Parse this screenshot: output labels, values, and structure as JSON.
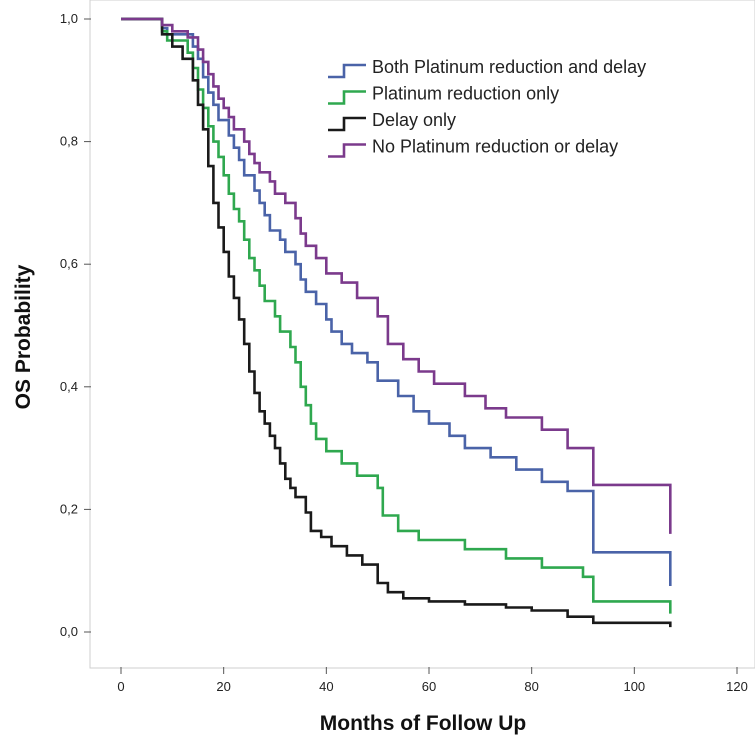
{
  "chart_data": {
    "type": "line",
    "title": "",
    "xlabel": "Months of Follow Up",
    "ylabel": "OS Probability",
    "xlim": [
      0,
      120
    ],
    "ylim": [
      0,
      1
    ],
    "x_ticks": [
      "0",
      "20",
      "40",
      "60",
      "80",
      "100",
      "120"
    ],
    "y_ticks": [
      "0,0",
      "0,2",
      "0,4",
      "0,6",
      "0,8",
      "1,0"
    ],
    "grid": false,
    "legend_position": "top-right",
    "series": [
      {
        "name": "Both Platinum reduction and delay",
        "color": "#4a63a8",
        "points": [
          [
            0,
            1.0
          ],
          [
            8,
            1.0
          ],
          [
            8,
            0.985
          ],
          [
            9,
            0.985
          ],
          [
            9,
            0.975
          ],
          [
            14,
            0.975
          ],
          [
            14,
            0.955
          ],
          [
            15,
            0.955
          ],
          [
            15,
            0.935
          ],
          [
            16,
            0.935
          ],
          [
            16,
            0.905
          ],
          [
            17,
            0.905
          ],
          [
            17,
            0.88
          ],
          [
            18,
            0.88
          ],
          [
            18,
            0.86
          ],
          [
            19,
            0.86
          ],
          [
            19,
            0.835
          ],
          [
            21,
            0.835
          ],
          [
            21,
            0.81
          ],
          [
            22,
            0.81
          ],
          [
            22,
            0.79
          ],
          [
            23,
            0.79
          ],
          [
            23,
            0.77
          ],
          [
            24,
            0.77
          ],
          [
            24,
            0.745
          ],
          [
            26,
            0.745
          ],
          [
            26,
            0.72
          ],
          [
            27,
            0.72
          ],
          [
            27,
            0.7
          ],
          [
            28,
            0.7
          ],
          [
            28,
            0.68
          ],
          [
            29,
            0.68
          ],
          [
            29,
            0.655
          ],
          [
            31,
            0.655
          ],
          [
            31,
            0.64
          ],
          [
            32,
            0.64
          ],
          [
            32,
            0.62
          ],
          [
            34,
            0.62
          ],
          [
            34,
            0.6
          ],
          [
            35,
            0.6
          ],
          [
            35,
            0.575
          ],
          [
            36,
            0.575
          ],
          [
            36,
            0.555
          ],
          [
            38,
            0.555
          ],
          [
            38,
            0.535
          ],
          [
            40,
            0.535
          ],
          [
            40,
            0.51
          ],
          [
            41,
            0.51
          ],
          [
            41,
            0.49
          ],
          [
            43,
            0.49
          ],
          [
            43,
            0.47
          ],
          [
            45,
            0.47
          ],
          [
            45,
            0.455
          ],
          [
            48,
            0.455
          ],
          [
            48,
            0.44
          ],
          [
            50,
            0.44
          ],
          [
            50,
            0.41
          ],
          [
            54,
            0.41
          ],
          [
            54,
            0.385
          ],
          [
            57,
            0.385
          ],
          [
            57,
            0.36
          ],
          [
            60,
            0.36
          ],
          [
            60,
            0.34
          ],
          [
            64,
            0.34
          ],
          [
            64,
            0.32
          ],
          [
            67,
            0.32
          ],
          [
            67,
            0.3
          ],
          [
            72,
            0.3
          ],
          [
            72,
            0.285
          ],
          [
            77,
            0.285
          ],
          [
            77,
            0.265
          ],
          [
            82,
            0.265
          ],
          [
            82,
            0.245
          ],
          [
            87,
            0.245
          ],
          [
            87,
            0.23
          ],
          [
            92,
            0.23
          ],
          [
            92,
            0.13
          ],
          [
            107,
            0.13
          ],
          [
            107,
            0.075
          ]
        ]
      },
      {
        "name": "Platinum reduction only",
        "color": "#2fa84f",
        "points": [
          [
            0,
            1.0
          ],
          [
            8,
            1.0
          ],
          [
            8,
            0.98
          ],
          [
            9,
            0.98
          ],
          [
            9,
            0.965
          ],
          [
            13,
            0.965
          ],
          [
            13,
            0.945
          ],
          [
            14,
            0.945
          ],
          [
            14,
            0.92
          ],
          [
            15,
            0.92
          ],
          [
            15,
            0.885
          ],
          [
            16,
            0.885
          ],
          [
            16,
            0.855
          ],
          [
            17,
            0.855
          ],
          [
            17,
            0.825
          ],
          [
            18,
            0.825
          ],
          [
            18,
            0.8
          ],
          [
            19,
            0.8
          ],
          [
            19,
            0.775
          ],
          [
            20,
            0.775
          ],
          [
            20,
            0.745
          ],
          [
            21,
            0.745
          ],
          [
            21,
            0.715
          ],
          [
            22,
            0.715
          ],
          [
            22,
            0.69
          ],
          [
            23,
            0.69
          ],
          [
            23,
            0.67
          ],
          [
            24,
            0.67
          ],
          [
            24,
            0.64
          ],
          [
            25,
            0.64
          ],
          [
            25,
            0.61
          ],
          [
            26,
            0.61
          ],
          [
            26,
            0.59
          ],
          [
            27,
            0.59
          ],
          [
            27,
            0.565
          ],
          [
            28,
            0.565
          ],
          [
            28,
            0.54
          ],
          [
            30,
            0.54
          ],
          [
            30,
            0.515
          ],
          [
            31,
            0.515
          ],
          [
            31,
            0.49
          ],
          [
            33,
            0.49
          ],
          [
            33,
            0.465
          ],
          [
            34,
            0.465
          ],
          [
            34,
            0.44
          ],
          [
            35,
            0.44
          ],
          [
            35,
            0.4
          ],
          [
            36,
            0.4
          ],
          [
            36,
            0.37
          ],
          [
            37,
            0.37
          ],
          [
            37,
            0.34
          ],
          [
            38,
            0.34
          ],
          [
            38,
            0.315
          ],
          [
            40,
            0.315
          ],
          [
            40,
            0.295
          ],
          [
            43,
            0.295
          ],
          [
            43,
            0.275
          ],
          [
            46,
            0.275
          ],
          [
            46,
            0.255
          ],
          [
            50,
            0.255
          ],
          [
            50,
            0.235
          ],
          [
            51,
            0.235
          ],
          [
            51,
            0.19
          ],
          [
            54,
            0.19
          ],
          [
            54,
            0.165
          ],
          [
            58,
            0.165
          ],
          [
            58,
            0.15
          ],
          [
            67,
            0.15
          ],
          [
            67,
            0.135
          ],
          [
            75,
            0.135
          ],
          [
            75,
            0.12
          ],
          [
            82,
            0.12
          ],
          [
            82,
            0.105
          ],
          [
            90,
            0.105
          ],
          [
            90,
            0.09
          ],
          [
            92,
            0.09
          ],
          [
            92,
            0.05
          ],
          [
            107,
            0.05
          ],
          [
            107,
            0.03
          ]
        ]
      },
      {
        "name": "Delay only",
        "color": "#1a1a1a",
        "points": [
          [
            0,
            1.0
          ],
          [
            8,
            1.0
          ],
          [
            8,
            0.975
          ],
          [
            10,
            0.975
          ],
          [
            10,
            0.955
          ],
          [
            12,
            0.955
          ],
          [
            12,
            0.935
          ],
          [
            14,
            0.935
          ],
          [
            14,
            0.9
          ],
          [
            15,
            0.9
          ],
          [
            15,
            0.86
          ],
          [
            16,
            0.86
          ],
          [
            16,
            0.82
          ],
          [
            17,
            0.82
          ],
          [
            17,
            0.76
          ],
          [
            18,
            0.76
          ],
          [
            18,
            0.7
          ],
          [
            19,
            0.7
          ],
          [
            19,
            0.66
          ],
          [
            20,
            0.66
          ],
          [
            20,
            0.62
          ],
          [
            21,
            0.62
          ],
          [
            21,
            0.58
          ],
          [
            22,
            0.58
          ],
          [
            22,
            0.545
          ],
          [
            23,
            0.545
          ],
          [
            23,
            0.51
          ],
          [
            24,
            0.51
          ],
          [
            24,
            0.47
          ],
          [
            25,
            0.47
          ],
          [
            25,
            0.425
          ],
          [
            26,
            0.425
          ],
          [
            26,
            0.39
          ],
          [
            27,
            0.39
          ],
          [
            27,
            0.36
          ],
          [
            28,
            0.36
          ],
          [
            28,
            0.34
          ],
          [
            29,
            0.34
          ],
          [
            29,
            0.32
          ],
          [
            30,
            0.32
          ],
          [
            30,
            0.3
          ],
          [
            31,
            0.3
          ],
          [
            31,
            0.275
          ],
          [
            32,
            0.275
          ],
          [
            32,
            0.25
          ],
          [
            33,
            0.25
          ],
          [
            33,
            0.235
          ],
          [
            34,
            0.235
          ],
          [
            34,
            0.22
          ],
          [
            36,
            0.22
          ],
          [
            36,
            0.195
          ],
          [
            37,
            0.195
          ],
          [
            37,
            0.165
          ],
          [
            39,
            0.165
          ],
          [
            39,
            0.155
          ],
          [
            41,
            0.155
          ],
          [
            41,
            0.14
          ],
          [
            44,
            0.14
          ],
          [
            44,
            0.125
          ],
          [
            47,
            0.125
          ],
          [
            47,
            0.11
          ],
          [
            50,
            0.11
          ],
          [
            50,
            0.08
          ],
          [
            52,
            0.08
          ],
          [
            52,
            0.065
          ],
          [
            55,
            0.065
          ],
          [
            55,
            0.055
          ],
          [
            60,
            0.055
          ],
          [
            60,
            0.05
          ],
          [
            67,
            0.05
          ],
          [
            67,
            0.045
          ],
          [
            75,
            0.045
          ],
          [
            75,
            0.04
          ],
          [
            80,
            0.04
          ],
          [
            80,
            0.035
          ],
          [
            87,
            0.035
          ],
          [
            87,
            0.025
          ],
          [
            92,
            0.025
          ],
          [
            92,
            0.015
          ],
          [
            107,
            0.015
          ],
          [
            107,
            0.008
          ]
        ]
      },
      {
        "name": "No Platinum reduction or delay",
        "color": "#7b3a8c",
        "points": [
          [
            0,
            1.0
          ],
          [
            8,
            1.0
          ],
          [
            8,
            0.99
          ],
          [
            10,
            0.99
          ],
          [
            10,
            0.98
          ],
          [
            13,
            0.98
          ],
          [
            13,
            0.97
          ],
          [
            15,
            0.97
          ],
          [
            15,
            0.95
          ],
          [
            16,
            0.95
          ],
          [
            16,
            0.93
          ],
          [
            17,
            0.93
          ],
          [
            17,
            0.91
          ],
          [
            18,
            0.91
          ],
          [
            18,
            0.89
          ],
          [
            19,
            0.89
          ],
          [
            19,
            0.87
          ],
          [
            20,
            0.87
          ],
          [
            20,
            0.855
          ],
          [
            21,
            0.855
          ],
          [
            21,
            0.84
          ],
          [
            22,
            0.84
          ],
          [
            22,
            0.82
          ],
          [
            24,
            0.82
          ],
          [
            24,
            0.8
          ],
          [
            25,
            0.8
          ],
          [
            25,
            0.78
          ],
          [
            26,
            0.78
          ],
          [
            26,
            0.765
          ],
          [
            27,
            0.765
          ],
          [
            27,
            0.75
          ],
          [
            29,
            0.75
          ],
          [
            29,
            0.735
          ],
          [
            30,
            0.735
          ],
          [
            30,
            0.715
          ],
          [
            32,
            0.715
          ],
          [
            32,
            0.7
          ],
          [
            34,
            0.7
          ],
          [
            34,
            0.675
          ],
          [
            35,
            0.675
          ],
          [
            35,
            0.65
          ],
          [
            36,
            0.65
          ],
          [
            36,
            0.63
          ],
          [
            38,
            0.63
          ],
          [
            38,
            0.61
          ],
          [
            40,
            0.61
          ],
          [
            40,
            0.585
          ],
          [
            43,
            0.585
          ],
          [
            43,
            0.57
          ],
          [
            46,
            0.57
          ],
          [
            46,
            0.545
          ],
          [
            50,
            0.545
          ],
          [
            50,
            0.515
          ],
          [
            52,
            0.515
          ],
          [
            52,
            0.47
          ],
          [
            55,
            0.47
          ],
          [
            55,
            0.445
          ],
          [
            58,
            0.445
          ],
          [
            58,
            0.425
          ],
          [
            61,
            0.425
          ],
          [
            61,
            0.405
          ],
          [
            67,
            0.405
          ],
          [
            67,
            0.385
          ],
          [
            71,
            0.385
          ],
          [
            71,
            0.365
          ],
          [
            75,
            0.365
          ],
          [
            75,
            0.35
          ],
          [
            82,
            0.35
          ],
          [
            82,
            0.33
          ],
          [
            87,
            0.33
          ],
          [
            87,
            0.3
          ],
          [
            92,
            0.3
          ],
          [
            92,
            0.24
          ],
          [
            107,
            0.24
          ],
          [
            107,
            0.16
          ]
        ]
      }
    ]
  }
}
